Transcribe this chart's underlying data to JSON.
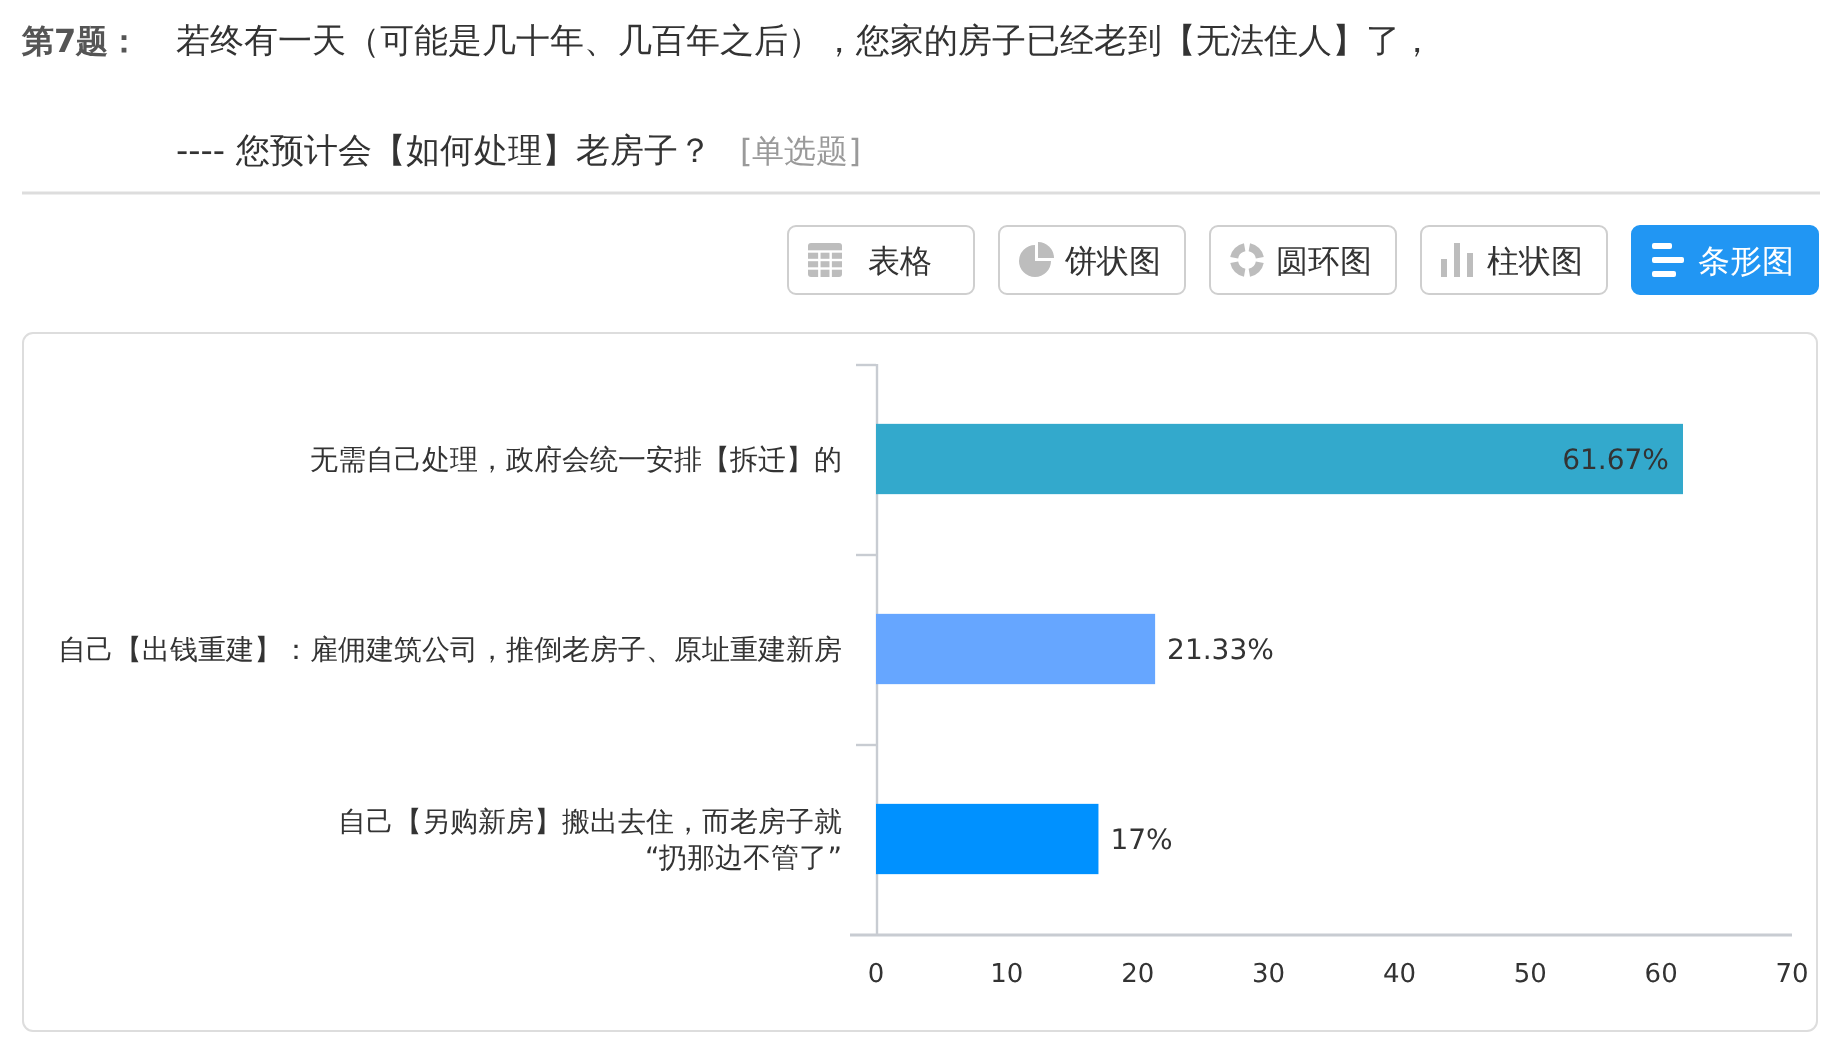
{
  "chart_data": {
    "type": "bar",
    "orientation": "horizontal",
    "title": "若终有一天（可能是几十年、几百年之后），您家的房子已经老到【无法住人】了，",
    "subtitle": "---- 您预计会【如何处理】老房子？",
    "annotations": [
      "第7题：",
      "[单选题]",
      "表格",
      "饼状图",
      "圆环图",
      "柱状图",
      "条形图"
    ],
    "categories": [
      "无需自己处理，政府会统一安排【拆迁】的",
      "自己【出钱重建】：雇佣建筑公司，推倒老房子、原址重建新房",
      "自己【另购新房】搬出去住，而老房子就\n“扔那边不管了”"
    ],
    "values": [
      61.67,
      21.33,
      17
    ],
    "colors": [
      "#33a9cc",
      "#66a6ff",
      "#0091ff"
    ],
    "value_labels": [
      "61.67%",
      "21.33%",
      "17%"
    ],
    "xlim": [
      0,
      70
    ],
    "xticks": [
      0,
      10,
      20,
      30,
      40,
      50,
      60,
      70
    ]
  }
}
